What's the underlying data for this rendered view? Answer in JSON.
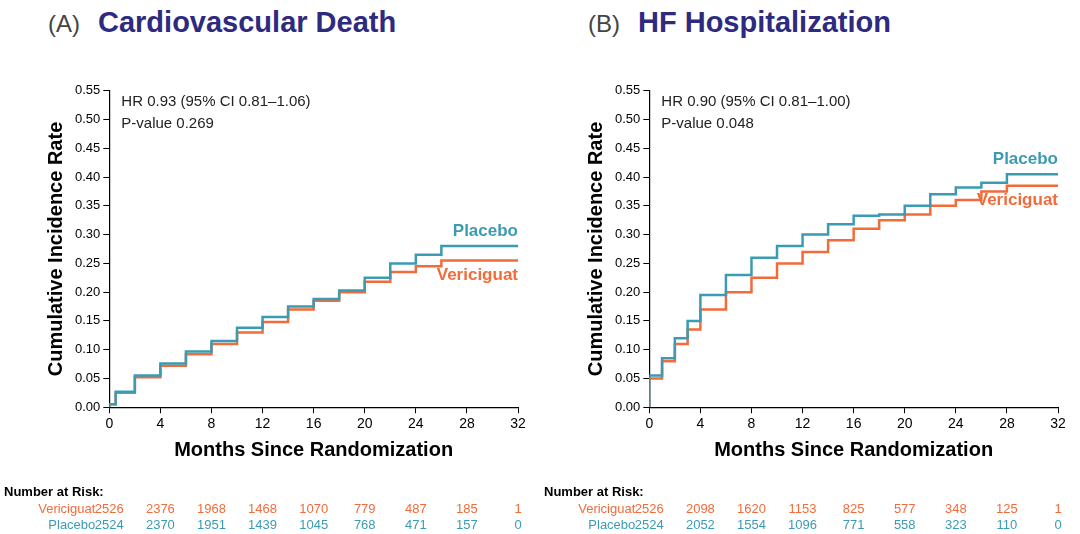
{
  "chart_data": [
    {
      "type": "line",
      "panel_label": "(A)",
      "title": "Cardiovascular Death",
      "annotations": [
        "HR 0.93 (95% CI 0.81–1.06)",
        "P-value 0.269"
      ],
      "x_label": "Months Since Randomization",
      "y_label": "Cumulative Incidence Rate",
      "xlim": [
        0,
        32
      ],
      "xticks": [
        0,
        4,
        8,
        12,
        16,
        20,
        24,
        28,
        32
      ],
      "ylim": [
        0,
        0.55
      ],
      "yticks": [
        {
          "value": 0,
          "label": "0.00"
        },
        {
          "value": 0.05,
          "label": "0.05"
        },
        {
          "value": 0.1,
          "label": "0.10"
        },
        {
          "value": 0.15,
          "label": "0.15"
        },
        {
          "value": 0.2,
          "label": "0.20"
        },
        {
          "value": 0.25,
          "label": "0.25"
        },
        {
          "value": 0.3,
          "label": "0.30"
        },
        {
          "value": 0.35,
          "label": "0.35"
        },
        {
          "value": 0.4,
          "label": "0.40"
        },
        {
          "value": 0.45,
          "label": "0.45"
        },
        {
          "value": 0.5,
          "label": "0.50"
        },
        {
          "value": 0.55,
          "label": "0.55"
        }
      ],
      "grid": false,
      "line_style": "step",
      "series": [
        {
          "name": "Placebo",
          "color": "#3a9bb3",
          "x": [
            0,
            0.5,
            2,
            4,
            6,
            8,
            10,
            12,
            14,
            16,
            18,
            20,
            22,
            24,
            26,
            28,
            32
          ],
          "values": [
            0,
            0.005,
            0.027,
            0.055,
            0.076,
            0.097,
            0.115,
            0.138,
            0.157,
            0.175,
            0.188,
            0.203,
            0.225,
            0.25,
            0.265,
            0.28,
            0.28
          ]
        },
        {
          "name": "Vericiguat",
          "color": "#f26b3a",
          "x": [
            0,
            0.5,
            2,
            4,
            6,
            8,
            10,
            12,
            14,
            16,
            18,
            20,
            22,
            24,
            26,
            28,
            32
          ],
          "values": [
            0,
            0.005,
            0.025,
            0.052,
            0.072,
            0.092,
            0.11,
            0.13,
            0.148,
            0.17,
            0.185,
            0.2,
            0.218,
            0.235,
            0.245,
            0.255,
            0.255
          ]
        }
      ],
      "risk_table": {
        "title": "Number at Risk:",
        "x": [
          0,
          4,
          8,
          12,
          16,
          20,
          24,
          28,
          32
        ],
        "rows": [
          {
            "name": "Vericiguat",
            "color": "#f26b3a",
            "values": [
              2526,
              2376,
              1968,
              1468,
              1070,
              779,
              487,
              185,
              1
            ]
          },
          {
            "name": "Placebo",
            "color": "#3a9bb3",
            "values": [
              2524,
              2370,
              1951,
              1439,
              1045,
              768,
              471,
              157,
              0
            ]
          }
        ]
      }
    },
    {
      "type": "line",
      "panel_label": "(B)",
      "title": "HF Hospitalization",
      "annotations": [
        "HR 0.90 (95% CI 0.81–1.00)",
        "P-value 0.048"
      ],
      "x_label": "Months Since Randomization",
      "y_label": "Cumulative Incidence Rate",
      "xlim": [
        0,
        32
      ],
      "xticks": [
        0,
        4,
        8,
        12,
        16,
        20,
        24,
        28,
        32
      ],
      "ylim": [
        0,
        0.55
      ],
      "yticks": [
        {
          "value": 0,
          "label": "0.00"
        },
        {
          "value": 0.05,
          "label": "0.05"
        },
        {
          "value": 0.1,
          "label": "0.10"
        },
        {
          "value": 0.15,
          "label": "0.15"
        },
        {
          "value": 0.2,
          "label": "0.20"
        },
        {
          "value": 0.25,
          "label": "0.25"
        },
        {
          "value": 0.3,
          "label": "0.30"
        },
        {
          "value": 0.35,
          "label": "0.35"
        },
        {
          "value": 0.4,
          "label": "0.40"
        },
        {
          "value": 0.45,
          "label": "0.45"
        },
        {
          "value": 0.5,
          "label": "0.50"
        },
        {
          "value": 0.55,
          "label": "0.55"
        }
      ],
      "grid": false,
      "line_style": "step",
      "series": [
        {
          "name": "Placebo",
          "color": "#3a9bb3",
          "x": [
            0,
            1,
            2,
            3,
            4,
            6,
            8,
            10,
            12,
            14,
            16,
            18,
            20,
            22,
            24,
            26,
            28,
            29,
            32
          ],
          "values": [
            0,
            0.055,
            0.085,
            0.12,
            0.15,
            0.195,
            0.23,
            0.26,
            0.28,
            0.3,
            0.318,
            0.333,
            0.335,
            0.35,
            0.37,
            0.382,
            0.39,
            0.405,
            0.405
          ]
        },
        {
          "name": "Vericiguat",
          "color": "#f26b3a",
          "x": [
            0,
            1,
            2,
            3,
            4,
            6,
            8,
            10,
            12,
            14,
            16,
            18,
            20,
            22,
            24,
            26,
            28,
            29,
            32
          ],
          "values": [
            0,
            0.05,
            0.08,
            0.11,
            0.135,
            0.17,
            0.2,
            0.225,
            0.25,
            0.27,
            0.29,
            0.31,
            0.325,
            0.335,
            0.35,
            0.36,
            0.375,
            0.385,
            0.385
          ]
        }
      ],
      "risk_table": {
        "title": "Number at Risk:",
        "x": [
          0,
          4,
          8,
          12,
          16,
          20,
          24,
          28,
          32
        ],
        "rows": [
          {
            "name": "Vericiguat",
            "color": "#f26b3a",
            "values": [
              2526,
              2098,
              1620,
              1153,
              825,
              577,
              348,
              125,
              1
            ]
          },
          {
            "name": "Placebo",
            "color": "#3a9bb3",
            "values": [
              2524,
              2052,
              1554,
              1096,
              771,
              558,
              323,
              110,
              0
            ]
          }
        ]
      }
    }
  ]
}
